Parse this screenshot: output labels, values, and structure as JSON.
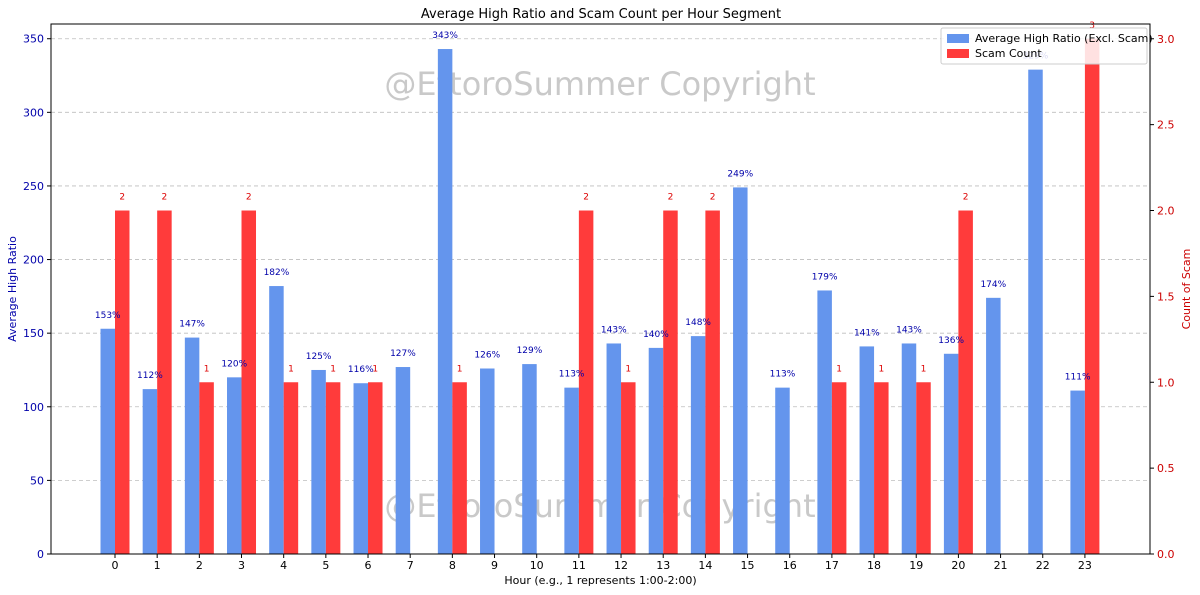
{
  "chart_data": {
    "type": "bar",
    "title": "Average High Ratio and Scam Count per Hour Segment",
    "xlabel": "Hour (e.g., 1 represents 1:00-2:00)",
    "ylabel_left": "Average High Ratio",
    "ylabel_right": "Count of Scam",
    "categories": [
      "0",
      "1",
      "2",
      "3",
      "4",
      "5",
      "6",
      "7",
      "8",
      "9",
      "10",
      "11",
      "12",
      "13",
      "14",
      "15",
      "16",
      "17",
      "18",
      "19",
      "20",
      "21",
      "22",
      "23"
    ],
    "y_left_lim": [
      0,
      360
    ],
    "y_left_ticks": [
      0,
      50,
      100,
      150,
      200,
      250,
      300,
      350
    ],
    "y_right_lim": [
      0,
      3.086
    ],
    "y_right_ticks": [
      "0.0",
      "0.5",
      "1.0",
      "1.5",
      "2.0",
      "2.5",
      "3.0"
    ],
    "grid": true,
    "legend_placement": "top-right",
    "watermark": "@EttoroSummer Copyright",
    "series": [
      {
        "name": "Average High Ratio (Excl. Scam)",
        "axis": "left",
        "color": "#6495ED",
        "values": [
          153,
          112,
          147,
          120,
          182,
          125,
          116,
          127,
          343,
          126,
          129,
          113,
          143,
          140,
          148,
          249,
          113,
          179,
          141,
          143,
          136,
          174,
          329,
          111
        ],
        "labels": [
          "153%",
          "112%",
          "147%",
          "120%",
          "182%",
          "125%",
          "116%",
          "127%",
          "343%",
          "126%",
          "129%",
          "113%",
          "143%",
          "140%",
          "148%",
          "249%",
          "113%",
          "179%",
          "141%",
          "143%",
          "136%",
          "174%",
          "329%",
          "111%"
        ]
      },
      {
        "name": "Scam Count",
        "axis": "right",
        "color": "#FF3B3B",
        "values": [
          2,
          2,
          1,
          2,
          1,
          1,
          1,
          0,
          1,
          0,
          0,
          2,
          1,
          2,
          2,
          0,
          0,
          1,
          1,
          1,
          2,
          0,
          0,
          3
        ],
        "labels": [
          "2",
          "2",
          "1",
          "2",
          "1",
          "1",
          "1",
          "",
          "1",
          "",
          "",
          "2",
          "1",
          "2",
          "2",
          "",
          "",
          "1",
          "1",
          "1",
          "2",
          "",
          "",
          "3"
        ]
      }
    ]
  }
}
